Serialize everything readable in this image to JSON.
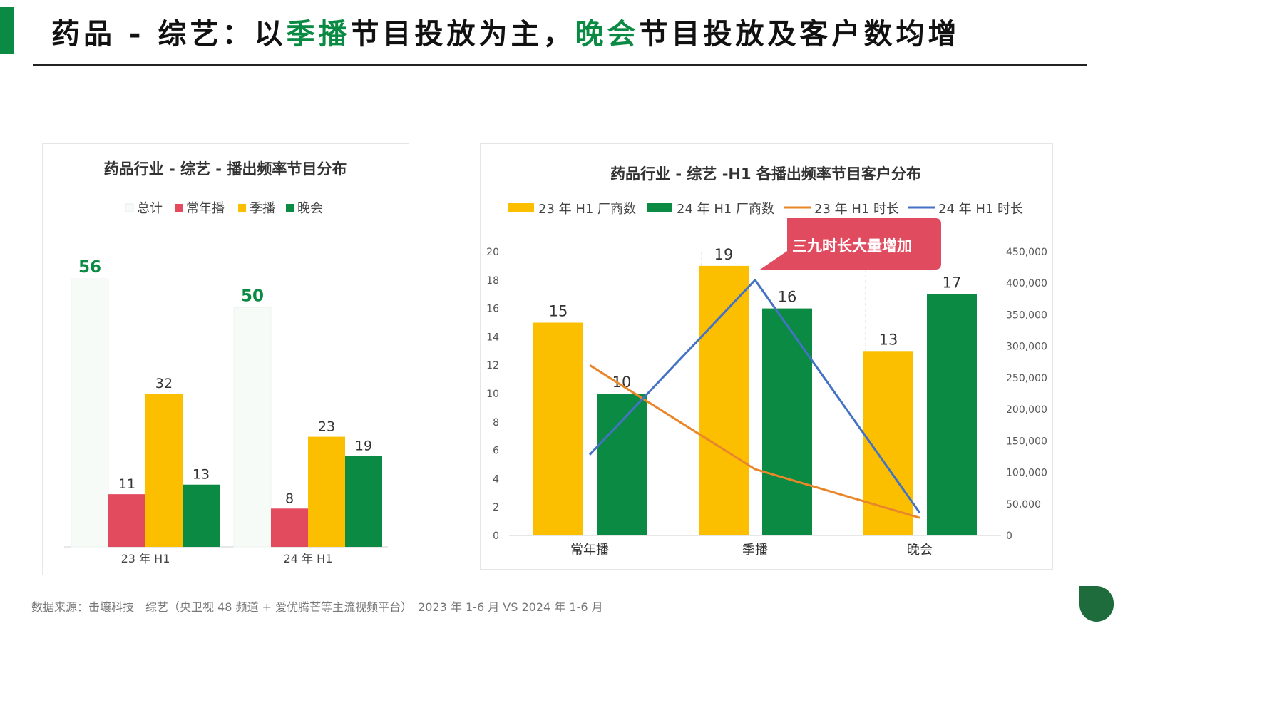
{
  "header": {
    "title_part1": "药品 - 综艺：以",
    "title_hl1": "季播",
    "title_part2": "节目投放为主，",
    "title_hl2": "晚会",
    "title_part3": "节目投放及客户数均增"
  },
  "footer": {
    "source": "数据来源：击壤科技　综艺（央卫视 48 频道 + 爱优腾芒等主流视频平台）　2023 年 1-6 月  VS 2024 年 1-6 月"
  },
  "colors": {
    "green": "#0b8a43",
    "red": "#e24a5d",
    "yellow": "#fbbf00",
    "orange": "#e8872a",
    "blue": "#4472c4",
    "total_fill": "#f6fbf7",
    "callout": "#e04b5f"
  },
  "chart_data": [
    {
      "type": "bar",
      "title": "药品行业 - 综艺 - 播出频率节目分布",
      "categories": [
        "23 年 H1",
        "24 年 H1"
      ],
      "series": [
        {
          "name": "总计",
          "values": [
            56,
            50
          ],
          "color": "#f6fbf7"
        },
        {
          "name": "常年播",
          "values": [
            11,
            8
          ],
          "color": "#e24a5d"
        },
        {
          "name": "季播",
          "values": [
            32,
            23
          ],
          "color": "#fbbf00"
        },
        {
          "name": "晚会",
          "values": [
            13,
            19
          ],
          "color": "#0b8a43"
        }
      ],
      "legend": "top",
      "grid": false
    },
    {
      "type": "bar",
      "title": "药品行业 - 综艺 -H1 各播出频率节目客户分布",
      "categories": [
        "常年播",
        "季播",
        "晚会"
      ],
      "series": [
        {
          "name": "23 年 H1 厂商数",
          "kind": "bar",
          "axis": "left",
          "values": [
            15,
            19,
            13
          ],
          "color": "#fbbf00"
        },
        {
          "name": "24 年 H1 厂商数",
          "kind": "bar",
          "axis": "left",
          "values": [
            10,
            16,
            17
          ],
          "color": "#0b8a43"
        },
        {
          "name": "23 年 H1 时长",
          "kind": "line",
          "axis": "right",
          "values": [
            270000,
            105000,
            28000
          ],
          "color": "#e8872a"
        },
        {
          "name": "24 年 H1 时长",
          "kind": "line",
          "axis": "right",
          "values": [
            128000,
            405000,
            36000
          ],
          "color": "#4472c4"
        }
      ],
      "ylim": [
        0,
        20
      ],
      "yticks": [
        0,
        2,
        4,
        6,
        8,
        10,
        12,
        14,
        16,
        18,
        20
      ],
      "y2lim": [
        0,
        450000
      ],
      "y2ticks": [
        "0",
        "50,000",
        "100,000",
        "150,000",
        "200,000",
        "250,000",
        "300,000",
        "350,000",
        "400,000",
        "450,000"
      ],
      "legend": "top",
      "grid": "vertical-dashed",
      "annotation": "三九时长大量增加"
    }
  ]
}
